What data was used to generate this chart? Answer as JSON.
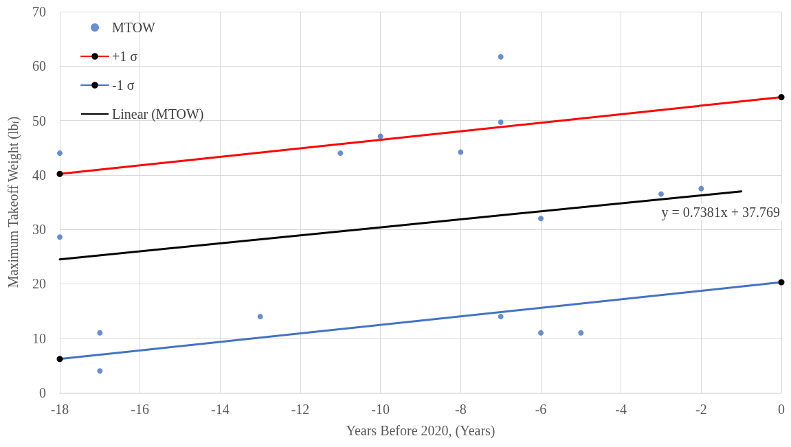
{
  "chart_data": {
    "type": "scatter",
    "xlabel": "Years Before 2020, (Years)",
    "ylabel": "Maximum Takeoff Weight (lb$_{f}$)",
    "xlim": [
      -18,
      0
    ],
    "xticks": [
      -18,
      -16,
      -14,
      -12,
      -10,
      -8,
      -6,
      -4,
      -2,
      0
    ],
    "ylim": [
      0,
      70
    ],
    "yticks": [
      0,
      10,
      20,
      30,
      40,
      50,
      60,
      70
    ],
    "grid": true,
    "legend": "top left",
    "annotations": [
      "y = 0.7381x + 37.769"
    ],
    "series": [
      {
        "name": "MTOW",
        "marker": "circle",
        "color": "#4472c4",
        "x": [
          -18,
          -18,
          -17,
          -17,
          -13,
          -11,
          -10,
          -8,
          -7,
          -7,
          -7,
          -6,
          -6,
          -5,
          -3,
          -2
        ],
        "values": [
          44,
          28.6,
          11,
          4,
          14,
          44,
          47.1,
          44.2,
          61.7,
          49.7,
          14,
          32,
          11,
          11,
          36.5,
          37.5
        ]
      },
      {
        "name": "+1 σ",
        "type": "line",
        "marker": "circle",
        "line_style": "solid",
        "color": "#ff0000",
        "x": [
          -18,
          0
        ],
        "values": [
          40.2,
          54.3
        ]
      },
      {
        "name": "-1 σ",
        "type": "line",
        "marker": "circle",
        "line_style": "solid",
        "color": "#4472c4",
        "x": [
          -18,
          0
        ],
        "values": [
          6.2,
          20.3
        ]
      },
      {
        "name": "Linear (MTOW)",
        "type": "line",
        "marker": "none",
        "line_style": "solid",
        "color": "#000000",
        "x": [
          -18,
          -1
        ],
        "values": [
          24.5,
          37.0
        ]
      }
    ]
  }
}
